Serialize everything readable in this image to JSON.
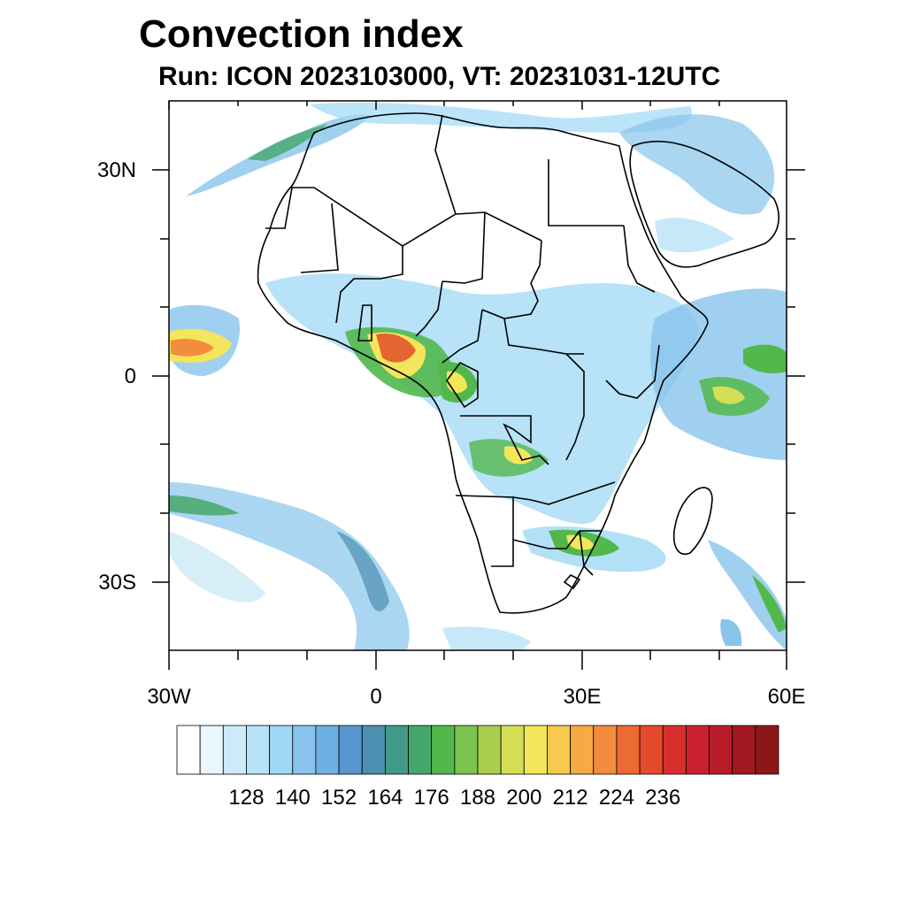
{
  "title": "Convection index",
  "subtitle": "Run: ICON 2023103000,  VT: 20231031-12UTC",
  "map": {
    "lat_labels": [
      "30N",
      "0",
      "30S"
    ],
    "lon_labels": [
      "30W",
      "0",
      "30E",
      "60E"
    ],
    "lat_range": [
      -40,
      40
    ],
    "lon_range": [
      -30,
      60
    ]
  },
  "colorbar": {
    "labels": [
      "128",
      "140",
      "152",
      "164",
      "176",
      "188",
      "200",
      "212",
      "224",
      "236"
    ],
    "colors": [
      "#ffffff",
      "#eaf6fd",
      "#cdeaf8",
      "#b8e2f8",
      "#9fd8f5",
      "#88c4ec",
      "#6fb0e2",
      "#5797cf",
      "#4c8fb0",
      "#3f9a8a",
      "#45a86a",
      "#52b84c",
      "#7cc24f",
      "#a8cf4e",
      "#d6de54",
      "#f3e65a",
      "#f8c94c",
      "#f7a944",
      "#f38c3c",
      "#ec6a33",
      "#e34b2c",
      "#d92f2c",
      "#c9222e",
      "#b81b2a",
      "#a21923",
      "#8b1719"
    ]
  }
}
